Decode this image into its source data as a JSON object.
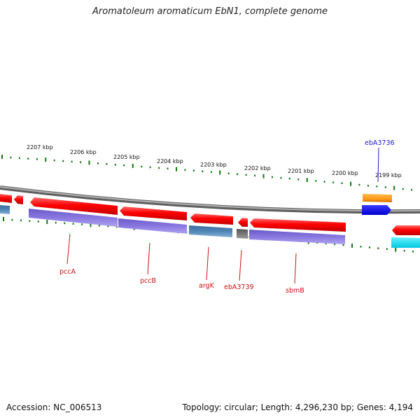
{
  "title": "Aromatoleum aromaticum EbN1, complete genome",
  "ruler_labels": [
    "2207 kbp",
    "2206 kbp",
    "2205 kbp",
    "2204 kbp",
    "2203 kbp",
    "2202 kbp",
    "2201 kbp",
    "2200 kbp",
    "2199 kbp"
  ],
  "gene_labels": [
    {
      "name": "ebA3736",
      "color": "#1a1acc"
    },
    {
      "name": "pccA",
      "color": "#cc1111"
    },
    {
      "name": "pccB",
      "color": "#cc1111"
    },
    {
      "name": "argK",
      "color": "#cc1111"
    },
    {
      "name": "ebA3739",
      "color": "#cc1111"
    },
    {
      "name": "sbmB",
      "color": "#cc1111"
    }
  ],
  "colors": {
    "cds": "#ff0000",
    "purple": "#8a78e0",
    "steel": "#4f86b8",
    "gray_gene": "#666666",
    "orange": "#ff9a1a",
    "blue": "#0000ff",
    "cyan": "#00e5ff",
    "tick": "#117711",
    "backbone": "#808080"
  },
  "footer": {
    "accession": "Accession: NC_006513",
    "topology": "Topology: circular; Length: 4,296,230 bp; Genes: 4,194"
  }
}
